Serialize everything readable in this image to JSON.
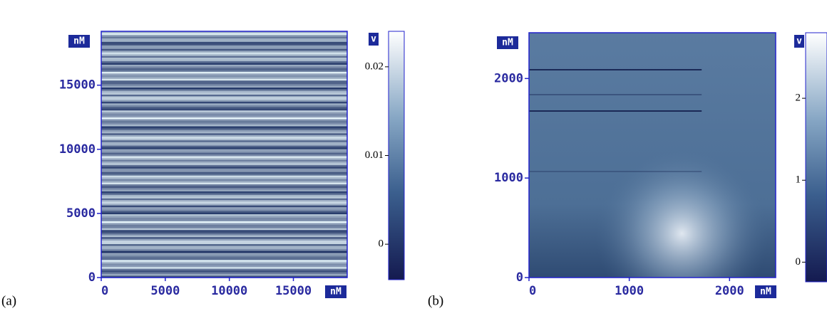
{
  "chart_data": [
    {
      "type": "heatmap",
      "panel_label": "(a)",
      "x_unit": "nM",
      "y_unit": "nM",
      "colorbar_label": "v",
      "xlim": [
        0,
        19200
      ],
      "ylim": [
        0,
        19200
      ],
      "xticks": [
        0,
        5000,
        10000,
        15000
      ],
      "yticks": [
        0,
        5000,
        10000,
        15000
      ],
      "clim": [
        -0.004,
        0.024
      ],
      "cticks": [
        0,
        0.01,
        0.02
      ]
    },
    {
      "type": "heatmap",
      "panel_label": "(b)",
      "x_unit": "nM",
      "y_unit": "nM",
      "colorbar_label": "v",
      "xlim": [
        0,
        2460
      ],
      "ylim": [
        0,
        2460
      ],
      "xticks": [
        0,
        1000,
        2000
      ],
      "yticks": [
        0,
        1000,
        2000
      ],
      "clim": [
        -0.24,
        2.8
      ],
      "cticks": [
        0,
        1,
        2
      ]
    }
  ]
}
